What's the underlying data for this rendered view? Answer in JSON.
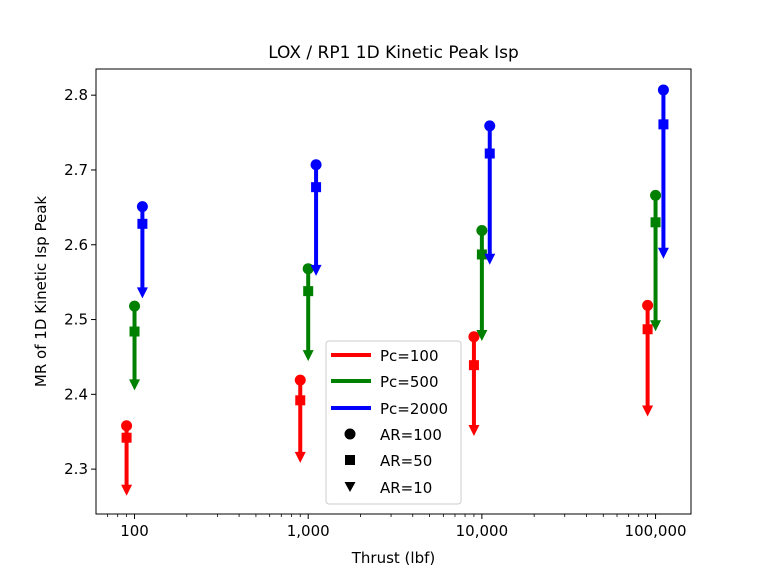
{
  "chart_data": {
    "type": "scatter",
    "title": "LOX / RP1 1D Kinetic Peak Isp",
    "xlabel": "Thrust (lbf)",
    "ylabel": "MR of 1D Kinetic Isp Peak",
    "xscale": "log",
    "xlim": [
      60,
      160000
    ],
    "ylim": [
      2.24,
      2.835
    ],
    "xticks": [
      100,
      1000,
      10000,
      100000
    ],
    "xtick_labels": [
      "100",
      "1,000",
      "10,000",
      "100,000"
    ],
    "yticks": [
      2.3,
      2.4,
      2.5,
      2.6,
      2.7,
      2.8
    ],
    "ytick_labels": [
      "2.3",
      "2.4",
      "2.5",
      "2.6",
      "2.7",
      "2.8"
    ],
    "grid": false,
    "legend_position": "lower-center",
    "series": [
      {
        "name": "Pc=100",
        "color": "#ff0000",
        "x": [
          90,
          900,
          9000,
          90000
        ],
        "AR100": [
          2.358,
          2.419,
          2.477,
          2.519
        ],
        "AR50": [
          2.342,
          2.392,
          2.439,
          2.487
        ],
        "AR10": [
          2.267,
          2.311,
          2.347,
          2.373
        ]
      },
      {
        "name": "Pc=500",
        "color": "#008000",
        "x": [
          100,
          1000,
          10000,
          100000
        ],
        "AR100": [
          2.518,
          2.568,
          2.619,
          2.666
        ],
        "AR50": [
          2.484,
          2.538,
          2.587,
          2.63
        ],
        "AR10": [
          2.408,
          2.447,
          2.474,
          2.487
        ]
      },
      {
        "name": "Pc=2000",
        "color": "#0000ff",
        "x": [
          111,
          1110,
          11100,
          111000
        ],
        "AR100": [
          2.651,
          2.707,
          2.759,
          2.807
        ],
        "AR50": [
          2.628,
          2.677,
          2.722,
          2.761
        ],
        "AR10": [
          2.531,
          2.561,
          2.576,
          2.584
        ]
      }
    ],
    "markers": [
      {
        "name": "AR=100",
        "shape": "circle"
      },
      {
        "name": "AR=50",
        "shape": "square"
      },
      {
        "name": "AR=10",
        "shape": "triangle-down"
      }
    ]
  }
}
